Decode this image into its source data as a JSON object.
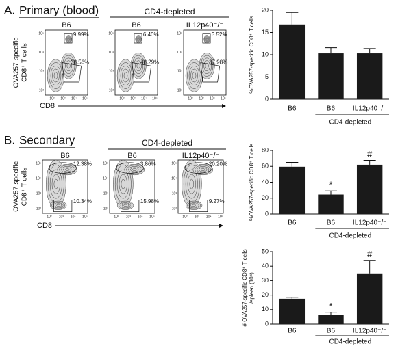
{
  "panels": [
    {
      "label": "A.",
      "title": "Primary (blood)",
      "group_label": "CD4-depleted",
      "y_label": [
        "OVA257-specific",
        "CD8⁺ T cells"
      ],
      "x_label": "CD8",
      "plots": [
        {
          "title": "B6",
          "gates": [
            "9.99%",
            "38.56%"
          ]
        },
        {
          "title": "B6",
          "gates": [
            "6.40%",
            "48.29%"
          ]
        },
        {
          "title": "IL12p40⁻/⁻",
          "gates": [
            "3.52%",
            "37.98%"
          ]
        }
      ]
    },
    {
      "label": "B.",
      "title": "Secondary",
      "group_label": "CD4-depleted",
      "y_label": [
        "OVA257-specific",
        "CD8⁺ T cells"
      ],
      "x_label": "CD8",
      "plots": [
        {
          "title": "B6",
          "gates": [
            "12.38%",
            "10.34%"
          ]
        },
        {
          "title": "B6",
          "gates": [
            "3.86%",
            "15.98%"
          ]
        },
        {
          "title": "IL12p40⁻/⁻",
          "gates": [
            "20.20%",
            "9.27%"
          ]
        }
      ]
    }
  ],
  "flow_ticks": {
    "x": [
      "10²",
      "10³",
      "10⁴",
      "10⁵"
    ],
    "y": [
      "10⁵",
      "10⁴",
      "10³",
      "10²"
    ]
  },
  "chart_data": [
    {
      "type": "bar",
      "y_label": [
        "%OVA257-specific CD8⁺ T cells"
      ],
      "categories": [
        "B6",
        "B6",
        "IL12p40⁻/⁻"
      ],
      "group_label": "CD4-depleted",
      "values": [
        16.8,
        10.3,
        10.3
      ],
      "errors": [
        2.7,
        1.3,
        1.1
      ],
      "color": "#1a1a1a",
      "ylim": [
        0,
        20
      ],
      "yticks": [
        0,
        5,
        10,
        15,
        20
      ]
    },
    {
      "type": "bar",
      "y_label": [
        "%OVA257-specific CD8⁺ T cells"
      ],
      "categories": [
        "B6",
        "B6",
        "IL12p40⁻/⁻"
      ],
      "group_label": "CD4-depleted",
      "values": [
        59.5,
        24.5,
        62
      ],
      "errors": [
        5.5,
        4.5,
        5.5
      ],
      "annotations": [
        null,
        "*",
        "#"
      ],
      "color": "#1a1a1a",
      "ylim": [
        0,
        80
      ],
      "yticks": [
        0,
        20,
        40,
        60,
        80
      ]
    },
    {
      "type": "bar",
      "y_label": [
        "# OVA257-specific CD8⁺ T cells",
        "/spleen (10⁴)"
      ],
      "categories": [
        "B6",
        "B6",
        "IL12p40⁻/⁻"
      ],
      "group_label": "CD4-depleted",
      "values": [
        17.5,
        6.2,
        35
      ],
      "errors": [
        1,
        2,
        9
      ],
      "annotations": [
        null,
        "*",
        "#"
      ],
      "color": "#1a1a1a",
      "ylim": [
        0,
        50
      ],
      "yticks": [
        0,
        10,
        20,
        30,
        40,
        50
      ]
    }
  ]
}
